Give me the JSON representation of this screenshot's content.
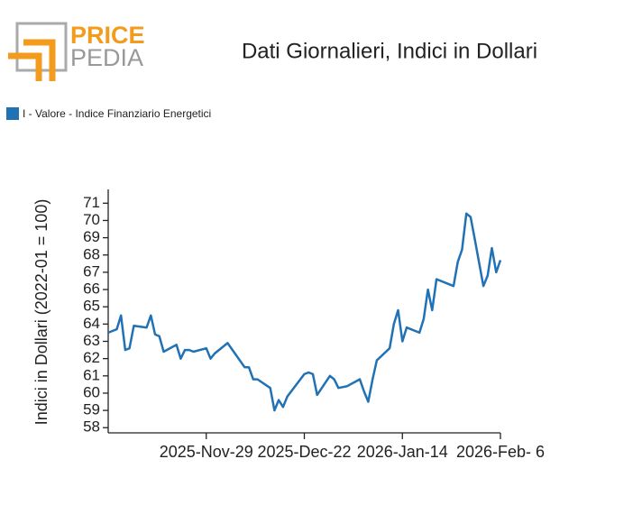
{
  "logo": {
    "top": "PRICE",
    "bottom": "PEDIA"
  },
  "chart_data": {
    "type": "line",
    "title": "Dati Giornalieri, Indici in Dollari",
    "y_label": "Indici in Dollari (2022-01 = 100)",
    "x": [
      "2025-11-06",
      "2025-11-08",
      "2025-11-09",
      "2025-11-10",
      "2025-11-11",
      "2025-11-12",
      "2025-11-15",
      "2025-11-16",
      "2025-11-17",
      "2025-11-18",
      "2025-11-19",
      "2025-11-22",
      "2025-11-23",
      "2025-11-24",
      "2025-11-25",
      "2025-11-26",
      "2025-11-29",
      "2025-11-30",
      "2025-12-01",
      "2025-12-04",
      "2025-12-08",
      "2025-12-09",
      "2025-12-10",
      "2025-12-11",
      "2025-12-14",
      "2025-12-15",
      "2025-12-16",
      "2025-12-17",
      "2025-12-18",
      "2025-12-22",
      "2025-12-23",
      "2025-12-24",
      "2025-12-25",
      "2025-12-28",
      "2025-12-29",
      "2025-12-30",
      "2026-01-01",
      "2026-01-04",
      "2026-01-05",
      "2026-01-06",
      "2026-01-07",
      "2026-01-08",
      "2026-01-11",
      "2026-01-12",
      "2026-01-13",
      "2026-01-14",
      "2026-01-15",
      "2026-01-18",
      "2026-01-19",
      "2026-01-20",
      "2026-01-21",
      "2026-01-22",
      "2026-01-26",
      "2026-01-27",
      "2026-01-28",
      "2026-01-29",
      "2026-01-30",
      "2026-01-31",
      "2026-02-02",
      "2026-02-03",
      "2026-02-04",
      "2026-02-05",
      "2026-02-06"
    ],
    "series": [
      {
        "name": "I - Valore - Indice Finanziario Energetici",
        "color": "#2171b5",
        "values": [
          63.5,
          63.7,
          64.5,
          62.5,
          62.6,
          63.9,
          63.8,
          64.5,
          63.4,
          63.3,
          62.4,
          62.8,
          62.0,
          62.5,
          62.5,
          62.4,
          62.6,
          62.0,
          62.3,
          62.9,
          61.5,
          61.5,
          60.8,
          60.8,
          60.3,
          59.0,
          59.6,
          59.2,
          59.8,
          61.1,
          61.2,
          61.1,
          59.9,
          61.0,
          60.8,
          60.3,
          60.4,
          60.8,
          60.1,
          59.5,
          60.8,
          61.9,
          62.6,
          64.0,
          64.8,
          63.0,
          63.8,
          63.5,
          64.3,
          66.0,
          64.8,
          66.6,
          66.2,
          67.6,
          68.3,
          70.4,
          70.2,
          68.9,
          66.2,
          66.8,
          68.4,
          67.0,
          67.7
        ]
      }
    ],
    "xlim": [
      "2025-11-06",
      "2026-02-06"
    ],
    "xticks": [
      {
        "value": "2025-11-29",
        "label": "2025-Nov-29"
      },
      {
        "value": "2025-12-22",
        "label": "2025-Dec-22"
      },
      {
        "value": "2026-01-14",
        "label": "2026-Jan-14"
      },
      {
        "value": "2026-02-06",
        "label": "2026-Feb- 6"
      }
    ],
    "ylim": [
      57.7,
      71.8
    ],
    "yticks": [
      58,
      59,
      60,
      61,
      62,
      63,
      64,
      65,
      66,
      67,
      68,
      69,
      70,
      71
    ],
    "grid": false,
    "legend": "top-left"
  }
}
